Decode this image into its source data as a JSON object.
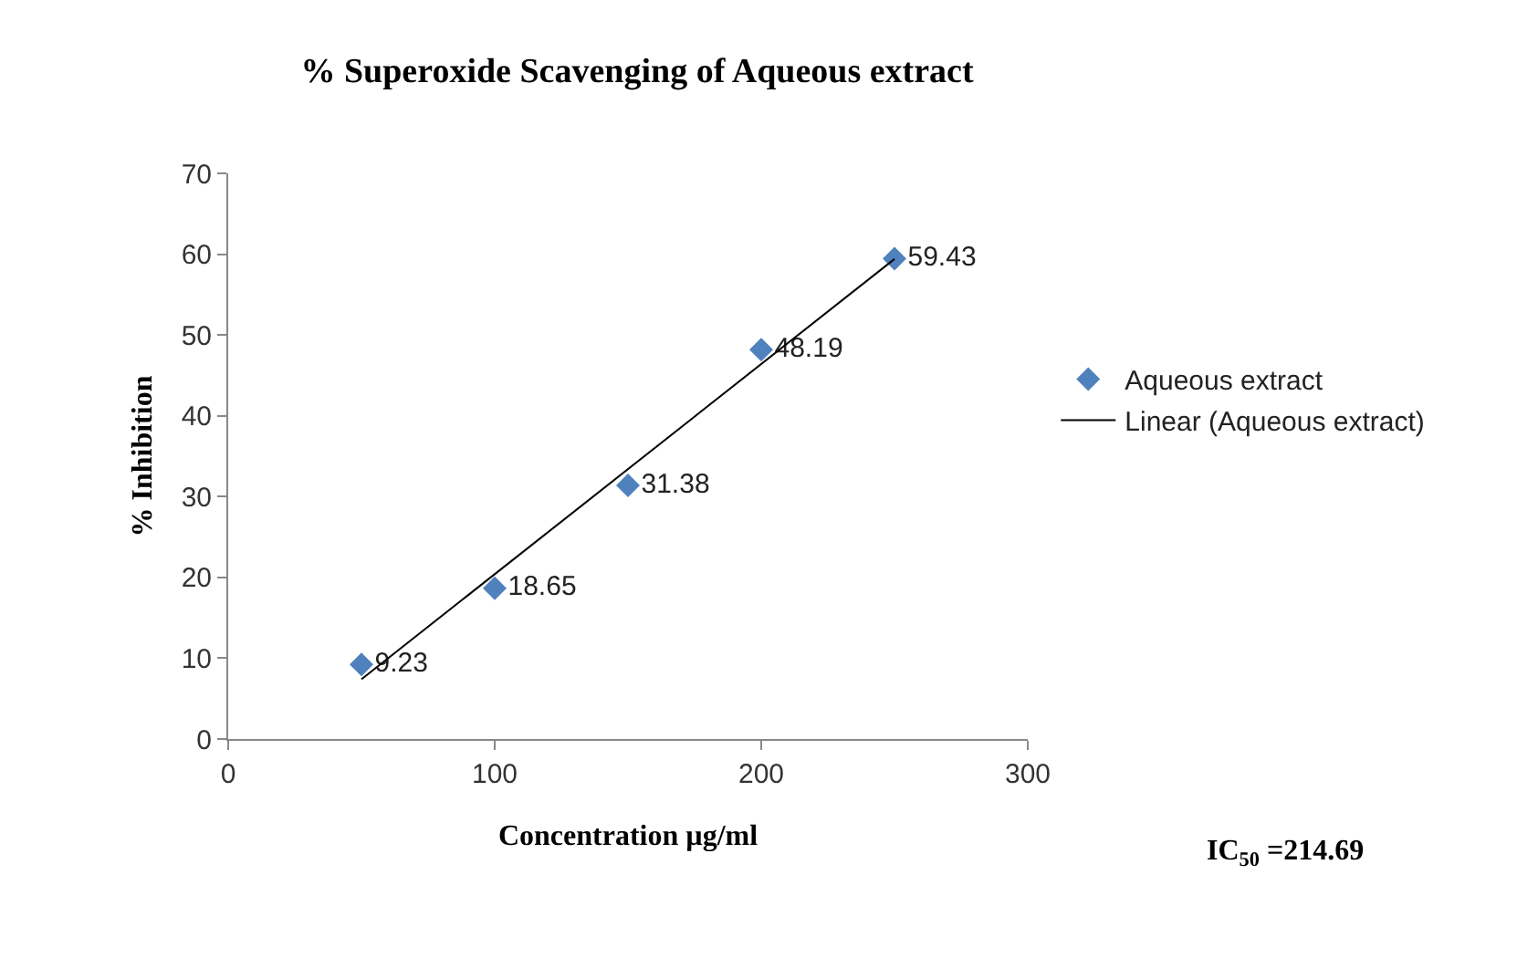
{
  "chart_data": {
    "type": "scatter",
    "title": "% Superoxide Scavenging of Aqueous extract",
    "xlabel": "Concentration µg/ml",
    "ylabel": "% Inhibition",
    "series": [
      {
        "name": "Aqueous extract",
        "color": "#4f81bd",
        "x": [
          50,
          100,
          150,
          200,
          250
        ],
        "values": [
          9.23,
          18.65,
          31.38,
          48.19,
          59.43
        ],
        "data_labels": true
      },
      {
        "name": "Linear (Aqueous extract)",
        "type": "line",
        "color": "#000000",
        "marker": "none",
        "x": [
          50,
          250
        ],
        "values": [
          7.4,
          59.4
        ]
      }
    ],
    "marker": "diamond",
    "line_style": "solid",
    "grid": false,
    "legend": "right",
    "xlim": [
      0,
      300
    ],
    "xticks": [
      0,
      100,
      200,
      300
    ],
    "ylim": [
      0,
      70
    ],
    "yticks": [
      0,
      10,
      20,
      30,
      40,
      50,
      60,
      70
    ],
    "annotations": [
      "IC$_{50}$ =214.69"
    ]
  }
}
